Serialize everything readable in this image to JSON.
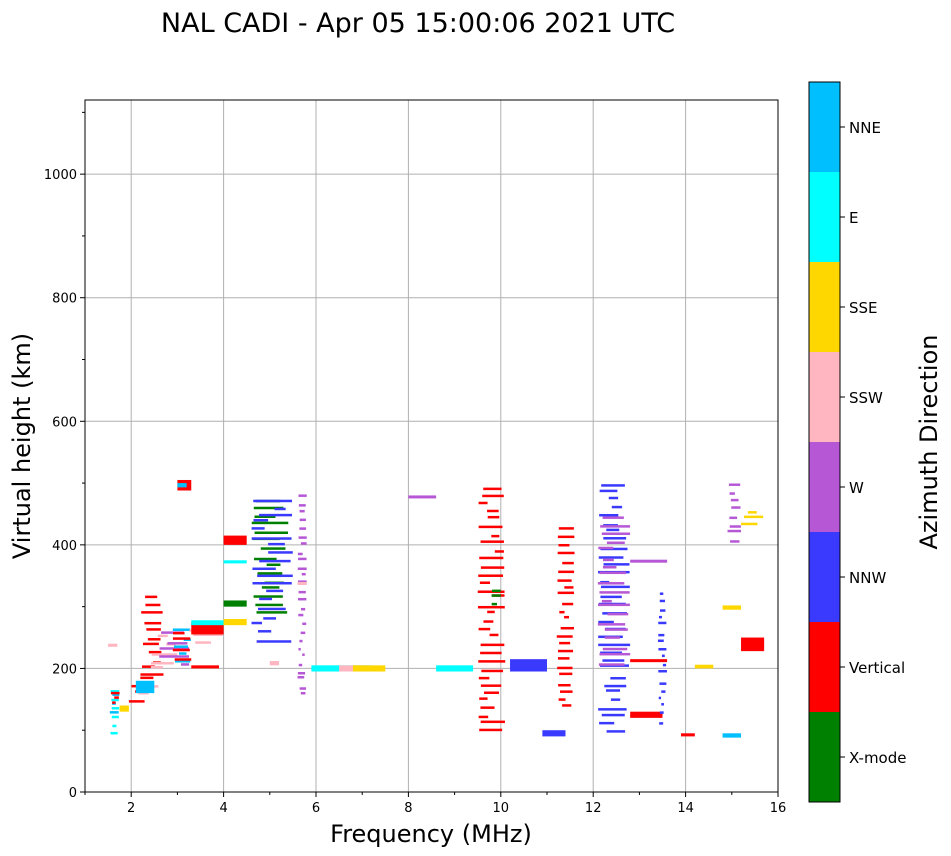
{
  "chart_data": {
    "type": "scatter",
    "title": "NAL CADI - Apr 05 15:00:06 2021 UTC",
    "xlabel": "Frequency (MHz)",
    "ylabel": "Virtual height (km)",
    "xlim": [
      1,
      16
    ],
    "ylim": [
      0,
      1120
    ],
    "xticks": [
      2,
      4,
      6,
      8,
      10,
      12,
      14,
      16
    ],
    "yticks": [
      0,
      200,
      400,
      600,
      800,
      1000
    ],
    "grid": true,
    "colorbar": {
      "label": "Azimuth Direction",
      "categories": [
        {
          "name": "X-mode",
          "color": "#008000"
        },
        {
          "name": "Vertical",
          "color": "#ff0000"
        },
        {
          "name": "NNW",
          "color": "#3a3aff"
        },
        {
          "name": "W",
          "color": "#b657d6"
        },
        {
          "name": "SSW",
          "color": "#ffb6c1"
        },
        {
          "name": "SSE",
          "color": "#ffd700"
        },
        {
          "name": "E",
          "color": "#00ffff"
        },
        {
          "name": "NNE",
          "color": "#00bfff"
        }
      ]
    },
    "echoes": [
      {
        "f": [
          1.55,
          1.75
        ],
        "h": [
          90,
          165
        ],
        "dir": "E"
      },
      {
        "f": [
          1.5,
          1.75
        ],
        "h": [
          125,
          165
        ],
        "dir": "NNE"
      },
      {
        "f": [
          1.55,
          1.75
        ],
        "h": [
          140,
          165
        ],
        "dir": "Vertical"
      },
      {
        "f": [
          1.5,
          1.7
        ],
        "h": [
          235,
          240
        ],
        "dir": "SSW"
      },
      {
        "f": [
          1.75,
          1.95
        ],
        "h": [
          130,
          140
        ],
        "dir": "SSE"
      },
      {
        "f": [
          1.9,
          2.5
        ],
        "h": [
          140,
          190
        ],
        "dir": "Vertical"
      },
      {
        "f": [
          2.0,
          2.6
        ],
        "h": [
          155,
          185
        ],
        "dir": "SSW"
      },
      {
        "f": [
          2.1,
          2.5
        ],
        "h": [
          160,
          180
        ],
        "dir": "NNE"
      },
      {
        "f": [
          2.2,
          2.7
        ],
        "h": [
          180,
          320
        ],
        "dir": "Vertical"
      },
      {
        "f": [
          2.4,
          3.0
        ],
        "h": [
          190,
          260
        ],
        "dir": "SSW"
      },
      {
        "f": [
          2.6,
          3.3
        ],
        "h": [
          200,
          260
        ],
        "dir": "W"
      },
      {
        "f": [
          2.9,
          3.3
        ],
        "h": [
          200,
          270
        ],
        "dir": "NNE"
      },
      {
        "f": [
          2.9,
          3.3
        ],
        "h": [
          210,
          265
        ],
        "dir": "Vertical"
      },
      {
        "f": [
          3.2,
          4.0
        ],
        "h": [
          235,
          270
        ],
        "dir": "SSW"
      },
      {
        "f": [
          3.3,
          4.0
        ],
        "h": [
          255,
          275
        ],
        "dir": "Vertical"
      },
      {
        "f": [
          3.3,
          4.0
        ],
        "h": [
          270,
          278
        ],
        "dir": "E"
      },
      {
        "f": [
          3.3,
          3.9
        ],
        "h": [
          200,
          205
        ],
        "dir": "Vertical"
      },
      {
        "f": [
          3.0,
          3.3
        ],
        "h": [
          488,
          505
        ],
        "dir": "Vertical"
      },
      {
        "f": [
          3.0,
          3.2
        ],
        "h": [
          493,
          500
        ],
        "dir": "NNE"
      },
      {
        "f": [
          4.0,
          4.5
        ],
        "h": [
          270,
          280
        ],
        "dir": "SSE"
      },
      {
        "f": [
          4.0,
          4.5
        ],
        "h": [
          300,
          310
        ],
        "dir": "X-mode"
      },
      {
        "f": [
          4.0,
          4.5
        ],
        "h": [
          400,
          415
        ],
        "dir": "Vertical"
      },
      {
        "f": [
          4.0,
          4.5
        ],
        "h": [
          370,
          375
        ],
        "dir": "E"
      },
      {
        "f": [
          4.6,
          5.4
        ],
        "h": [
          280,
          480
        ],
        "dir": "X-mode"
      },
      {
        "f": [
          4.6,
          5.5
        ],
        "h": [
          240,
          480
        ],
        "dir": "NNW"
      },
      {
        "f": [
          5.0,
          5.2
        ],
        "h": [
          205,
          212
        ],
        "dir": "SSW"
      },
      {
        "f": [
          5.6,
          5.8
        ],
        "h": [
          150,
          485
        ],
        "dir": "W"
      },
      {
        "f": [
          5.6,
          5.8
        ],
        "h": [
          335,
          340
        ],
        "dir": "SSW"
      },
      {
        "f": [
          5.9,
          7.2
        ],
        "h": [
          195,
          205
        ],
        "dir": "E"
      },
      {
        "f": [
          6.5,
          7.1
        ],
        "h": [
          195,
          205
        ],
        "dir": "SSW"
      },
      {
        "f": [
          6.8,
          7.5
        ],
        "h": [
          195,
          205
        ],
        "dir": "SSE"
      },
      {
        "f": [
          8.0,
          8.6
        ],
        "h": [
          478,
          480
        ],
        "dir": "W"
      },
      {
        "f": [
          8.6,
          9.4
        ],
        "h": [
          195,
          205
        ],
        "dir": "E"
      },
      {
        "f": [
          9.5,
          10.1
        ],
        "h": [
          90,
          500
        ],
        "dir": "Vertical"
      },
      {
        "f": [
          9.8,
          10.0
        ],
        "h": [
          300,
          330
        ],
        "dir": "X-mode"
      },
      {
        "f": [
          10.2,
          11.0
        ],
        "h": [
          195,
          215
        ],
        "dir": "NNW"
      },
      {
        "f": [
          10.9,
          11.4
        ],
        "h": [
          90,
          100
        ],
        "dir": "NNW"
      },
      {
        "f": [
          11.2,
          11.6
        ],
        "h": [
          130,
          430
        ],
        "dir": "Vertical"
      },
      {
        "f": [
          12.1,
          12.8
        ],
        "h": [
          90,
          505
        ],
        "dir": "NNW"
      },
      {
        "f": [
          12.1,
          12.8
        ],
        "h": [
          200,
          450
        ],
        "dir": "W"
      },
      {
        "f": [
          12.8,
          13.6
        ],
        "h": [
          212,
          215
        ],
        "dir": "Vertical"
      },
      {
        "f": [
          12.8,
          13.5
        ],
        "h": [
          120,
          130
        ],
        "dir": "Vertical"
      },
      {
        "f": [
          12.8,
          13.6
        ],
        "h": [
          372,
          376
        ],
        "dir": "W"
      },
      {
        "f": [
          13.4,
          13.6
        ],
        "h": [
          105,
          330
        ],
        "dir": "NNW"
      },
      {
        "f": [
          13.9,
          14.2
        ],
        "h": [
          90,
          95
        ],
        "dir": "Vertical"
      },
      {
        "f": [
          14.2,
          14.6
        ],
        "h": [
          200,
          206
        ],
        "dir": "SSE"
      },
      {
        "f": [
          14.8,
          15.2
        ],
        "h": [
          295,
          302
        ],
        "dir": "SSE"
      },
      {
        "f": [
          14.8,
          15.2
        ],
        "h": [
          88,
          95
        ],
        "dir": "NNE"
      },
      {
        "f": [
          14.9,
          15.2
        ],
        "h": [
          400,
          505
        ],
        "dir": "W"
      },
      {
        "f": [
          15.2,
          15.7
        ],
        "h": [
          228,
          250
        ],
        "dir": "Vertical"
      },
      {
        "f": [
          15.2,
          15.7
        ],
        "h": [
          430,
          460
        ],
        "dir": "SSE"
      }
    ]
  }
}
